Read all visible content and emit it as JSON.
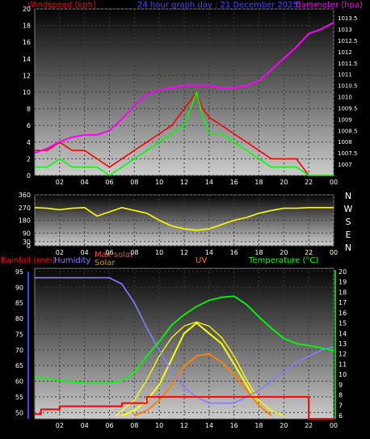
{
  "header": {
    "windspeed_label": "Windspeed (kph)",
    "center_title": "24 hour graph day : 21 December 2025",
    "barometer_label": "Barometer (hpa)"
  },
  "colors": {
    "wind": "#ff0000",
    "barometer": "#ff00ff",
    "gust_green": "#00ff00",
    "direction": "#ffff00",
    "humidity": "#8080ff",
    "temperature": "#00ff00",
    "uv": "#ff8000",
    "solar": "#ffff00",
    "rainfall": "#ff0000",
    "axis_text": "#ffffff"
  },
  "chart_data": [
    {
      "type": "line",
      "name": "wind-barometer",
      "x_ticks": [
        "02",
        "04",
        "06",
        "08",
        "10",
        "12",
        "14",
        "16",
        "18",
        "20",
        "22",
        "00"
      ],
      "ylim_left": [
        0,
        20
      ],
      "y_ticks_left": [
        0,
        2,
        4,
        6,
        8,
        10,
        12,
        14,
        16,
        18,
        20
      ],
      "ylim_right": [
        1006.5,
        1013.9
      ],
      "y_ticks_right": [
        1007,
        1007.5,
        1008,
        1008.5,
        1009,
        1009.5,
        1010,
        1010.5,
        1011,
        1011.5,
        1012,
        1012.5,
        1013,
        1013.5
      ],
      "series": [
        {
          "name": "Windspeed",
          "axis": "left",
          "color": "#ff0000",
          "x": [
            0,
            1,
            2,
            3,
            4,
            5,
            6,
            7,
            8,
            9,
            10,
            11,
            12,
            12.5,
            13,
            13.5,
            14,
            15,
            16,
            17,
            18,
            19,
            20,
            21,
            22,
            23,
            24
          ],
          "y": [
            3,
            3,
            4,
            3,
            3,
            2,
            1,
            2,
            3,
            4,
            5,
            6,
            8,
            9,
            10,
            8,
            7,
            6,
            5,
            4,
            3,
            2,
            2,
            2,
            0,
            0,
            0
          ]
        },
        {
          "name": "Wind",
          "axis": "left",
          "color": "#00ff00",
          "x": [
            0,
            1,
            2,
            3,
            4,
            5,
            6,
            7,
            8,
            9,
            10,
            11,
            12,
            12.5,
            13,
            13.5,
            14,
            15,
            16,
            17,
            18,
            19,
            20,
            21,
            22,
            23,
            24
          ],
          "y": [
            1,
            1,
            2,
            1,
            1,
            1,
            0,
            1,
            2,
            3,
            4,
            5,
            6,
            8,
            10,
            7,
            5,
            5,
            4,
            3,
            2,
            1,
            1,
            1,
            0,
            0,
            0
          ]
        },
        {
          "name": "Barometer",
          "axis": "right",
          "color": "#ff00ff",
          "x": [
            0,
            1,
            2,
            3,
            4,
            5,
            6,
            7,
            8,
            9,
            10,
            11,
            12,
            13,
            14,
            15,
            16,
            17,
            18,
            19,
            20,
            21,
            22,
            23,
            24
          ],
          "y": [
            1007.5,
            1007.7,
            1008,
            1008.2,
            1008.3,
            1008.3,
            1008.5,
            1009,
            1009.6,
            1010.1,
            1010.3,
            1010.4,
            1010.5,
            1010.5,
            1010.5,
            1010.4,
            1010.4,
            1010.5,
            1010.7,
            1011.2,
            1011.7,
            1012.2,
            1012.8,
            1013,
            1013.3
          ]
        }
      ]
    },
    {
      "type": "line",
      "name": "wind-direction",
      "x_ticks": [
        "02",
        "04",
        "06",
        "08",
        "10",
        "12",
        "14",
        "16",
        "18",
        "20",
        "22",
        "00"
      ],
      "ylim": [
        0,
        360
      ],
      "y_ticks": [
        0,
        30,
        90,
        180,
        270,
        360
      ],
      "compass": [
        "N",
        "W",
        "S",
        "E",
        "N"
      ],
      "series": [
        {
          "name": "Direction",
          "color": "#ffff00",
          "x": [
            0,
            1,
            2,
            3,
            4,
            5,
            6,
            7,
            8,
            9,
            10,
            11,
            12,
            13,
            14,
            15,
            16,
            17,
            18,
            19,
            20,
            21,
            22,
            23,
            24
          ],
          "y": [
            270,
            265,
            255,
            265,
            270,
            210,
            240,
            270,
            250,
            230,
            180,
            140,
            120,
            110,
            120,
            150,
            180,
            200,
            230,
            250,
            265,
            265,
            270,
            270,
            270
          ]
        }
      ]
    },
    {
      "type": "line",
      "name": "rain-humidity-solar-uv-temp",
      "legend": [
        "Rainfall (mm)",
        "Humidity",
        "Max solar",
        "Solar",
        "UV",
        "Temperature (°C)"
      ],
      "x_ticks": [
        "02",
        "04",
        "06",
        "08",
        "10",
        "12",
        "14",
        "16",
        "18",
        "20",
        "22",
        "00"
      ],
      "ylim_left": [
        48,
        96
      ],
      "y_ticks_left": [
        50,
        55,
        60,
        65,
        70,
        75,
        80,
        85,
        90,
        95
      ],
      "ylim_right": [
        5.7,
        20.3
      ],
      "y_ticks_right": [
        6,
        7,
        8,
        9,
        10,
        11,
        12,
        13,
        14,
        15,
        16,
        17,
        18,
        19,
        20
      ],
      "series": [
        {
          "name": "Humidity",
          "axis": "left",
          "color": "#8080ff",
          "x": [
            0,
            2,
            4,
            6,
            7,
            8,
            9,
            10,
            11,
            12,
            13,
            14,
            15,
            16,
            17,
            18,
            19,
            20,
            21,
            22,
            23,
            24
          ],
          "y": [
            93,
            93,
            93,
            93,
            91,
            85,
            77,
            70,
            63,
            58,
            55,
            53,
            53,
            53,
            55,
            57,
            60,
            63,
            66,
            68,
            70,
            71
          ]
        },
        {
          "name": "Temperature",
          "axis": "right",
          "color": "#00ff00",
          "x": [
            0,
            2,
            4,
            6,
            7,
            8,
            9,
            10,
            11,
            12,
            13,
            14,
            15,
            16,
            17,
            18,
            19,
            20,
            21,
            22,
            23,
            24
          ],
          "y": [
            9.8,
            9.4,
            9.2,
            9.2,
            9.4,
            10.2,
            11.8,
            13.2,
            14.8,
            15.8,
            16.6,
            17.2,
            17.5,
            17.6,
            16.8,
            15.6,
            14.5,
            13.5,
            13.0,
            12.8,
            12.6,
            12.3
          ]
        },
        {
          "name": "Max solar",
          "axis": "right",
          "color": "#ffff00",
          "x": [
            6.5,
            8,
            9,
            10,
            11,
            12,
            13,
            14,
            15,
            16,
            17,
            18,
            19,
            20
          ],
          "y": [
            6,
            7.5,
            9.5,
            11.8,
            13.6,
            14.7,
            15.1,
            14.7,
            13.6,
            11.8,
            9.5,
            7.5,
            6.5,
            6
          ]
        },
        {
          "name": "Solar",
          "axis": "right",
          "color": "#ffff00",
          "x": [
            7,
            8,
            9,
            10,
            11,
            12,
            13,
            14,
            15,
            16,
            17,
            18,
            19
          ],
          "y": [
            6,
            6.5,
            7.5,
            9,
            11.5,
            14,
            15,
            14,
            13,
            11,
            9,
            7,
            6
          ]
        },
        {
          "name": "UV",
          "axis": "right",
          "color": "#ff8000",
          "x": [
            8,
            9,
            10,
            11,
            12,
            13,
            14,
            15,
            16,
            17,
            18,
            19
          ],
          "y": [
            6,
            6.5,
            7.5,
            9,
            10.8,
            11.8,
            12,
            11.2,
            10,
            8.5,
            7,
            6
          ]
        },
        {
          "name": "Rainfall",
          "axis": "left",
          "color": "#ff0000",
          "x": [
            0,
            0.5,
            0.5,
            2,
            2,
            7,
            7,
            9,
            9,
            22,
            22,
            24
          ],
          "y": [
            49.5,
            49.5,
            51,
            51,
            52,
            52,
            53,
            53,
            55,
            55,
            48,
            48
          ]
        }
      ]
    }
  ]
}
